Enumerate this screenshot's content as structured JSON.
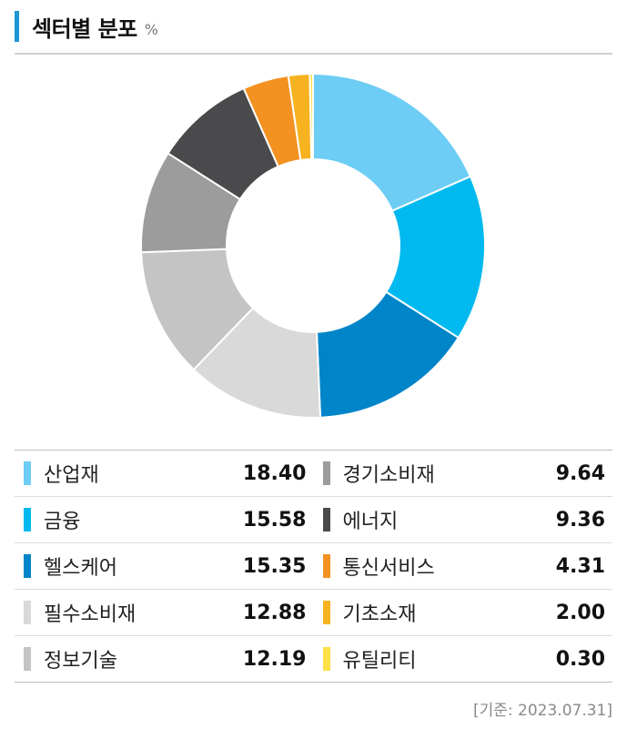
{
  "header": {
    "title": "섹터별 분포",
    "unit": "%"
  },
  "footnote": "[기준: 2023.07.31]",
  "chart_data": {
    "type": "pie",
    "donut": true,
    "categories": [
      "산업재",
      "금융",
      "헬스케어",
      "필수소비재",
      "정보기술",
      "경기소비재",
      "에너지",
      "통신서비스",
      "기초소재",
      "유틸리티"
    ],
    "values": [
      18.4,
      15.58,
      15.35,
      12.88,
      12.19,
      9.64,
      9.36,
      4.31,
      2.0,
      0.3
    ],
    "value_labels": [
      "18.40",
      "15.58",
      "15.35",
      "12.88",
      "12.19",
      "9.64",
      "9.36",
      "4.31",
      "2.00",
      "0.30"
    ],
    "colors": [
      "#6dcdf4",
      "#00b9ef",
      "#0085c9",
      "#d9d9d9",
      "#c4c4c4",
      "#9c9c9c",
      "#4a4a4d",
      "#f39121",
      "#f7b21f",
      "#fde046"
    ],
    "title": "섹터별 분포",
    "legend_position": "bottom"
  }
}
